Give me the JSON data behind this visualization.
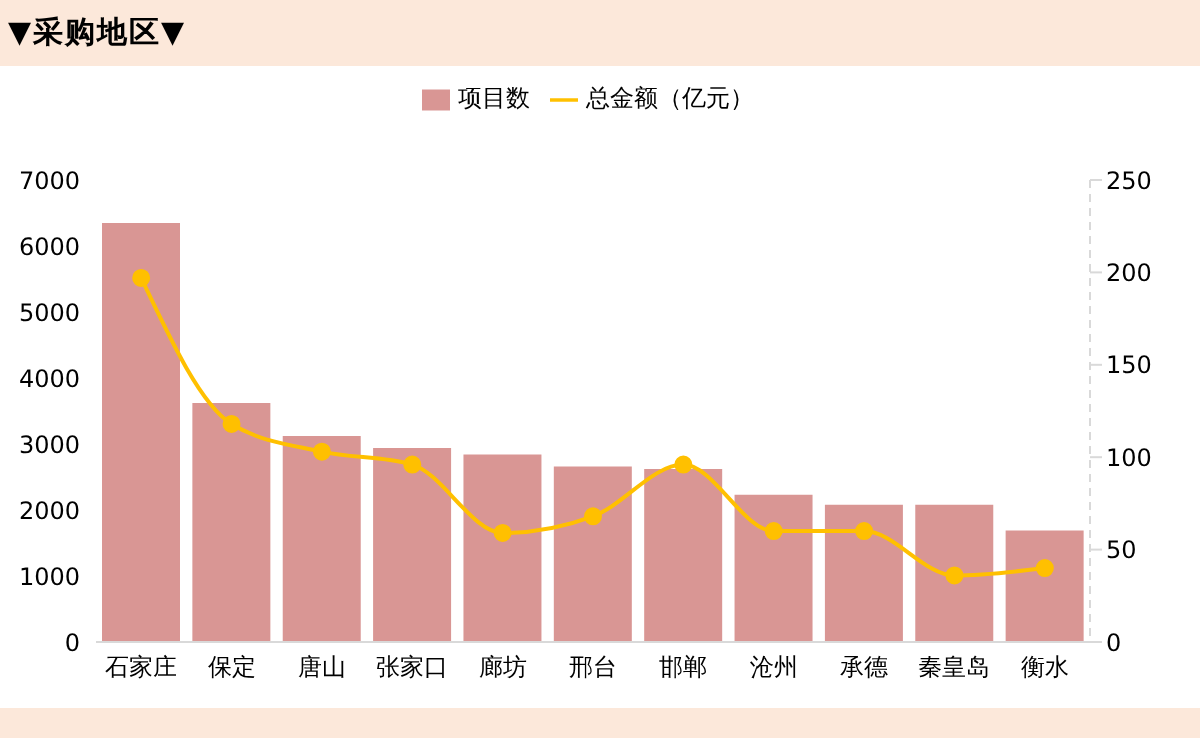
{
  "chart_data": {
    "type": "bar",
    "title": "▼采购地区▼",
    "categories": [
      "石家庄",
      "保定",
      "唐山",
      "张家口",
      "廊坊",
      "邢台",
      "邯郸",
      "沧州",
      "承德",
      "秦皇岛",
      "衡水"
    ],
    "series": [
      {
        "name": "项目数",
        "color": "#d99694",
        "values": [
          6350,
          3620,
          3120,
          2940,
          2840,
          2660,
          2620,
          2230,
          2080,
          2080,
          1690
        ]
      },
      {
        "name": "总金额（亿元）",
        "type": "line",
        "axis": "y2",
        "color": "#ffc000",
        "values": [
          197,
          118,
          103,
          96,
          59,
          68,
          96,
          60,
          60,
          36,
          40
        ]
      }
    ],
    "ylim": [
      0,
      7000
    ],
    "yticks": [
      0,
      1000,
      2000,
      3000,
      4000,
      5000,
      6000,
      7000
    ],
    "y2lim": [
      0,
      250
    ],
    "y2ticks": [
      0,
      50,
      100,
      150,
      200,
      250
    ],
    "legend": "top",
    "marker": "circle"
  }
}
